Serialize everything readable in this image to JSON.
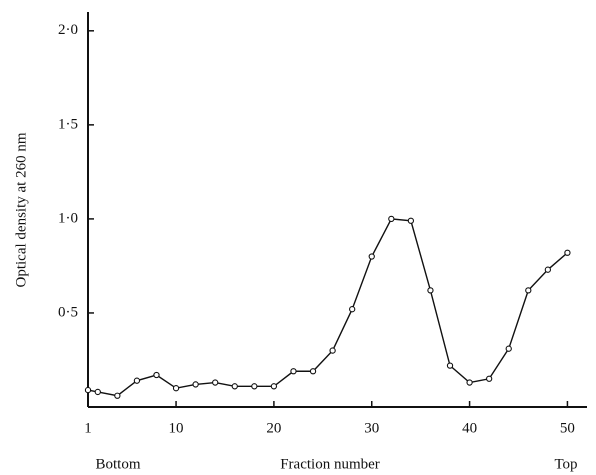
{
  "chart_data": {
    "type": "line",
    "y_label": "Optical density at 260 nm",
    "x_label": "Fraction number",
    "x_left_label": "Bottom",
    "x_right_label": "Top",
    "x": [
      1,
      2,
      4,
      6,
      8,
      10,
      12,
      14,
      16,
      18,
      20,
      22,
      24,
      26,
      28,
      30,
      32,
      34,
      36,
      38,
      40,
      42,
      44,
      46,
      48,
      50
    ],
    "values": [
      0.09,
      0.08,
      0.06,
      0.14,
      0.17,
      0.1,
      0.12,
      0.13,
      0.11,
      0.11,
      0.11,
      0.19,
      0.19,
      0.3,
      0.52,
      0.8,
      1.0,
      0.99,
      0.62,
      0.22,
      0.13,
      0.15,
      0.31,
      0.62,
      0.73,
      0.82
    ],
    "color": "#111111",
    "xlim": [
      1,
      52
    ],
    "ylim": [
      0,
      2.1
    ],
    "xticks": [
      1,
      10,
      20,
      30,
      40,
      50
    ],
    "yticks": [
      {
        "value": 0.5,
        "label": "0·5"
      },
      {
        "value": 1.0,
        "label": "1·0"
      },
      {
        "value": 1.5,
        "label": "1·5"
      },
      {
        "value": 2.0,
        "label": "2·0"
      }
    ],
    "grid": false
  }
}
